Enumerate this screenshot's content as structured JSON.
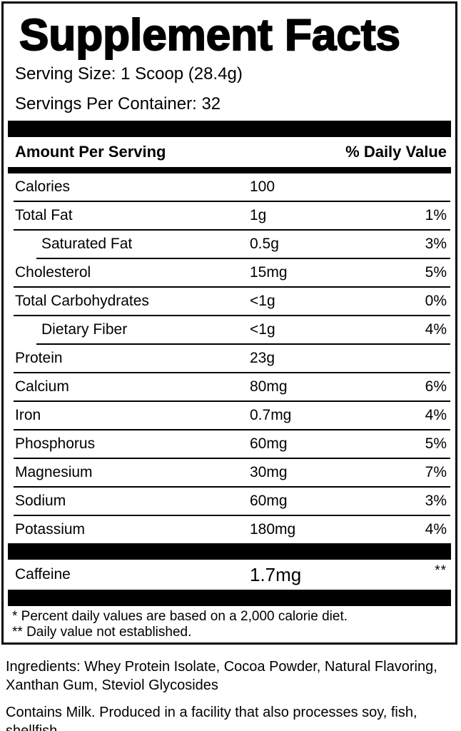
{
  "label": {
    "title": "Supplement Facts",
    "serving_size": "Serving Size: 1 Scoop (28.4g)",
    "servings_per_container": "Servings Per Container: 32",
    "header": {
      "amount_per_serving": "Amount Per Serving",
      "daily_value": "% Daily Value"
    },
    "rows": [
      {
        "name": "Calories",
        "amount": "100",
        "dv": "",
        "indent": false
      },
      {
        "name": "Total Fat",
        "amount": "1g",
        "dv": "1%",
        "indent": false
      },
      {
        "name": "Saturated Fat",
        "amount": "0.5g",
        "dv": "3%",
        "indent": true
      },
      {
        "name": "Cholesterol",
        "amount": "15mg",
        "dv": "5%",
        "indent": false
      },
      {
        "name": "Total Carbohydrates",
        "amount": "<1g",
        "dv": "0%",
        "indent": false
      },
      {
        "name": "Dietary Fiber",
        "amount": "<1g",
        "dv": "4%",
        "indent": true
      },
      {
        "name": "Protein",
        "amount": "23g",
        "dv": "",
        "indent": false
      },
      {
        "name": "Calcium",
        "amount": "80mg",
        "dv": "6%",
        "indent": false
      },
      {
        "name": "Iron",
        "amount": "0.7mg",
        "dv": "4%",
        "indent": false
      },
      {
        "name": "Phosphorus",
        "amount": "60mg",
        "dv": "5%",
        "indent": false
      },
      {
        "name": "Magnesium",
        "amount": "30mg",
        "dv": "7%",
        "indent": false
      },
      {
        "name": "Sodium",
        "amount": "60mg",
        "dv": "3%",
        "indent": false
      },
      {
        "name": "Potassium",
        "amount": "180mg",
        "dv": "4%",
        "indent": false
      }
    ],
    "caffeine": {
      "name": "Caffeine",
      "amount": "1.7mg",
      "dv": "**"
    },
    "footnotes": [
      "* Percent daily values are based on a 2,000 calorie diet.",
      "** Daily value not established."
    ]
  },
  "ingredients": "Ingredients: Whey Protein Isolate, Cocoa Powder, Natural Flavoring,\nXanthan Gum, Steviol Glycosides",
  "allergens": "Contains Milk. Produced in a facility that also processes soy, fish, shellfish,\nmilk, peanuts, tree nuts, wheat, and eggs.",
  "colors": {
    "text": "#000000",
    "background": "#ffffff",
    "bar": "#000000"
  }
}
